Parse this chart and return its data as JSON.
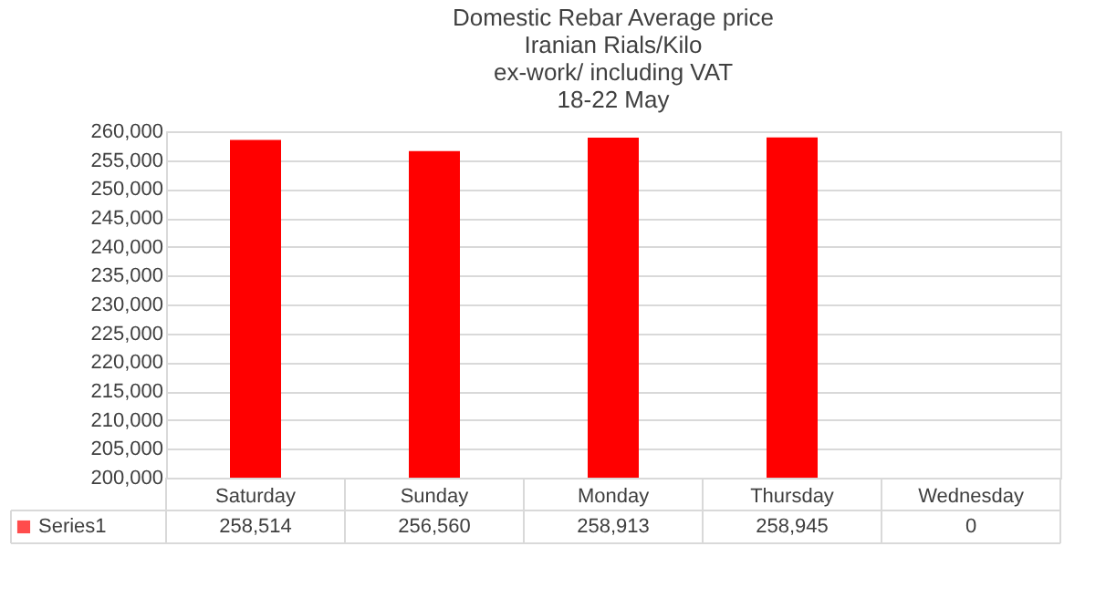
{
  "chart_data": {
    "type": "bar",
    "title": [
      "Domestic Rebar Average price",
      "Iranian Rials/Kilo",
      "ex-work/  including VAT",
      "18-22 May"
    ],
    "categories": [
      "Saturday",
      "Sunday",
      "Monday",
      "Thursday",
      "Wednesday"
    ],
    "series": [
      {
        "name": "Series1",
        "color": "#ff0000",
        "values": [
          258514,
          256560,
          258913,
          258945,
          null
        ],
        "value_labels": [
          "258,514",
          "256,560",
          "258,913",
          "258,945",
          "0"
        ]
      }
    ],
    "ylim": [
      200000,
      260000
    ],
    "yticks": [
      {
        "value": 200000,
        "label": "200,000"
      },
      {
        "value": 205000,
        "label": "205,000"
      },
      {
        "value": 210000,
        "label": "210,000"
      },
      {
        "value": 215000,
        "label": "215,000"
      },
      {
        "value": 220000,
        "label": "220,000"
      },
      {
        "value": 225000,
        "label": "225,000"
      },
      {
        "value": 230000,
        "label": "230,000"
      },
      {
        "value": 235000,
        "label": "235,000"
      },
      {
        "value": 240000,
        "label": "240,000"
      },
      {
        "value": 245000,
        "label": "245,000"
      },
      {
        "value": 250000,
        "label": "250,000"
      },
      {
        "value": 255000,
        "label": "255,000"
      },
      {
        "value": 260000,
        "label": "260,000"
      }
    ],
    "grid": "y"
  }
}
